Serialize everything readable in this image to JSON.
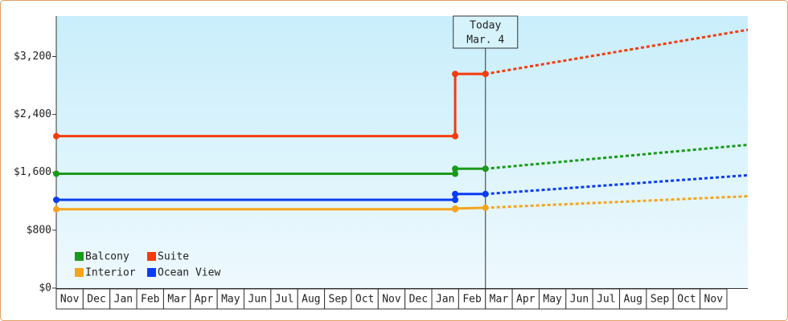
{
  "chart_data": {
    "type": "line",
    "categories": [
      "Nov",
      "Dec",
      "Jan",
      "Feb",
      "Mar",
      "Apr",
      "May",
      "Jun",
      "Jul",
      "Aug",
      "Sep",
      "Oct",
      "Nov",
      "Dec",
      "Jan",
      "Feb",
      "Mar",
      "Apr",
      "May",
      "Jun",
      "Jul",
      "Aug",
      "Sep",
      "Oct",
      "Nov"
    ],
    "x": [
      0,
      14.87,
      14.87,
      16.0,
      25.78
    ],
    "xlim": [
      0,
      25.78
    ],
    "ylim": [
      0,
      3760
    ],
    "yticks": [
      {
        "value": 0,
        "label": "$0"
      },
      {
        "value": 800,
        "label": "$800"
      },
      {
        "value": 1600,
        "label": "$1,600"
      },
      {
        "value": 2400,
        "label": "$2,400"
      },
      {
        "value": 3200,
        "label": "$3,200"
      }
    ],
    "annotation": {
      "x": 16.0,
      "lines": [
        "Today",
        "Mar. 4"
      ]
    },
    "series": [
      {
        "name": "Balcony",
        "color": "#1a9a1a",
        "values": [
          1580,
          1580,
          1650,
          1650,
          null
        ],
        "forecast": [
          null,
          null,
          null,
          1650,
          1980
        ]
      },
      {
        "name": "Suite",
        "color": "#f53b0c",
        "values": [
          2100,
          2100,
          2960,
          2960,
          null
        ],
        "forecast": [
          null,
          null,
          null,
          2960,
          3570
        ]
      },
      {
        "name": "Interior",
        "color": "#f5a41c",
        "values": [
          1090,
          1090,
          1100,
          1110,
          null
        ],
        "forecast": [
          null,
          null,
          null,
          1110,
          1270
        ]
      },
      {
        "name": "Ocean View",
        "color": "#0a3cf5",
        "values": [
          1220,
          1220,
          1300,
          1300,
          null
        ],
        "forecast": [
          null,
          null,
          null,
          1300,
          1560
        ]
      }
    ]
  }
}
